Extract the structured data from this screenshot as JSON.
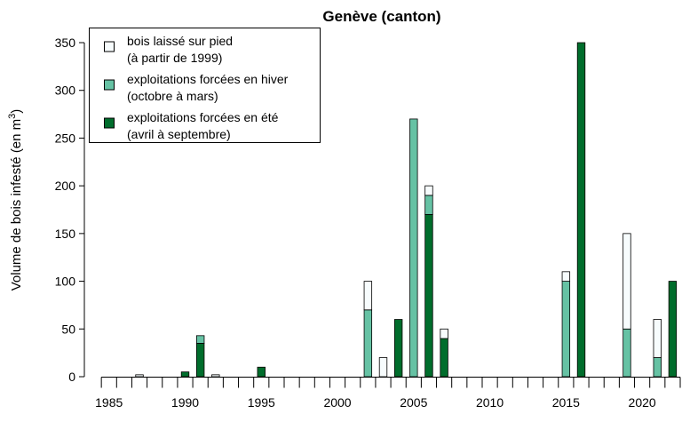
{
  "chart_data": {
    "type": "bar",
    "stacked": true,
    "title": "Genève (canton)",
    "xlabel": "",
    "ylabel": "Volume de bois infesté (en m",
    "ylabel_sup": "3",
    "ylabel_close": ")",
    "xlim": [
      1984,
      2023
    ],
    "ylim": [
      0,
      350
    ],
    "grid": false,
    "legend_position": "top-left",
    "x_tick_labels": [
      1985,
      1990,
      1995,
      2000,
      2005,
      2010,
      2015,
      2020
    ],
    "y_tick_labels": [
      0,
      50,
      100,
      150,
      200,
      250,
      300,
      350
    ],
    "x": [
      1987,
      1990,
      1991,
      1992,
      1995,
      2002,
      2003,
      2004,
      2005,
      2006,
      2007,
      2015,
      2016,
      2019,
      2021,
      2022
    ],
    "series": [
      {
        "key": "summer",
        "name": "exploitations forcées en été",
        "name_line2": "(avril à septembre)",
        "color": "#006d2c",
        "values": [
          0,
          5,
          35,
          0,
          10,
          0,
          0,
          60,
          0,
          170,
          40,
          0,
          350,
          0,
          0,
          100
        ]
      },
      {
        "key": "winter",
        "name": "exploitations forcées en hiver",
        "name_line2": "(octobre à mars)",
        "color": "#66c2a4",
        "values": [
          0,
          0,
          8,
          0,
          0,
          70,
          0,
          0,
          270,
          20,
          0,
          100,
          0,
          50,
          20,
          0
        ]
      },
      {
        "key": "standing",
        "name": "bois laissé sur pied",
        "name_line2": "(à partir de 1999)",
        "color": "#f7fcfd",
        "values": [
          2,
          0,
          0,
          2,
          0,
          30,
          20,
          0,
          0,
          10,
          10,
          10,
          0,
          100,
          40,
          0
        ]
      }
    ]
  }
}
